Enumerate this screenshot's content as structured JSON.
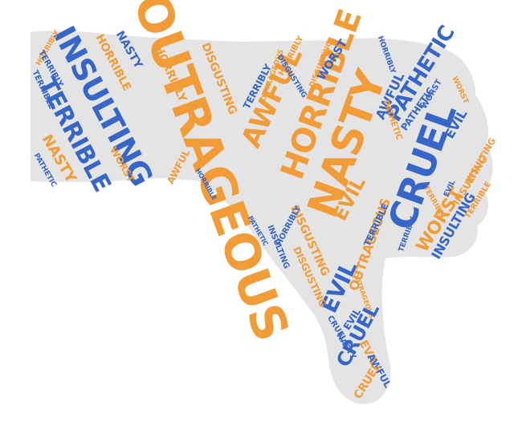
{
  "palette": {
    "orange": "#f29c38",
    "blue": "#3566c8",
    "silhouette": "#e4e4e4"
  },
  "silhouette_icon": "thumbs-down-icon",
  "words": [
    "OUTRAGEOUS",
    "NASTY",
    "HORRIBLE",
    "CRUEL",
    "INSULTING",
    "TERRIBLE",
    "AWFUL",
    "PATHETIC",
    "EVIL",
    "WORST",
    "HORRIBLY",
    "DISGUSTING",
    "NASTY",
    "HORRIBLE",
    "HORRIBLY",
    "DISGUSTING",
    "OUTRAGEOUS",
    "TERRIBLY",
    "AWFUL",
    "DISGUSTING",
    "HORRIBLY",
    "WORST",
    "HORRIBLY",
    "TERRIBLY",
    "NASTY",
    "PATHETIC",
    "WORST",
    "EVIL",
    "INSULTING",
    "PATHETIC",
    "OUTRAGEOUS",
    "WORST",
    "EVIL",
    "TERRIBLE",
    "INSULTING",
    "TERRIBLE",
    "OUTRAGEOUS",
    "DISGUSTING",
    "EVIL",
    "CRUEL",
    "EVIL",
    "AWFUL",
    "CRUEL",
    "INSULTING",
    "PATHETIC",
    "HORRIBLE",
    "AWFUL",
    "NASTY",
    "TERRIBLY",
    "HORRIBLY",
    "PATHETIC",
    "WORST",
    "TERRIBLE",
    "INSULTING",
    "DISGUSTING",
    "EVIL",
    "TERRIBLY",
    "CRUEL"
  ]
}
